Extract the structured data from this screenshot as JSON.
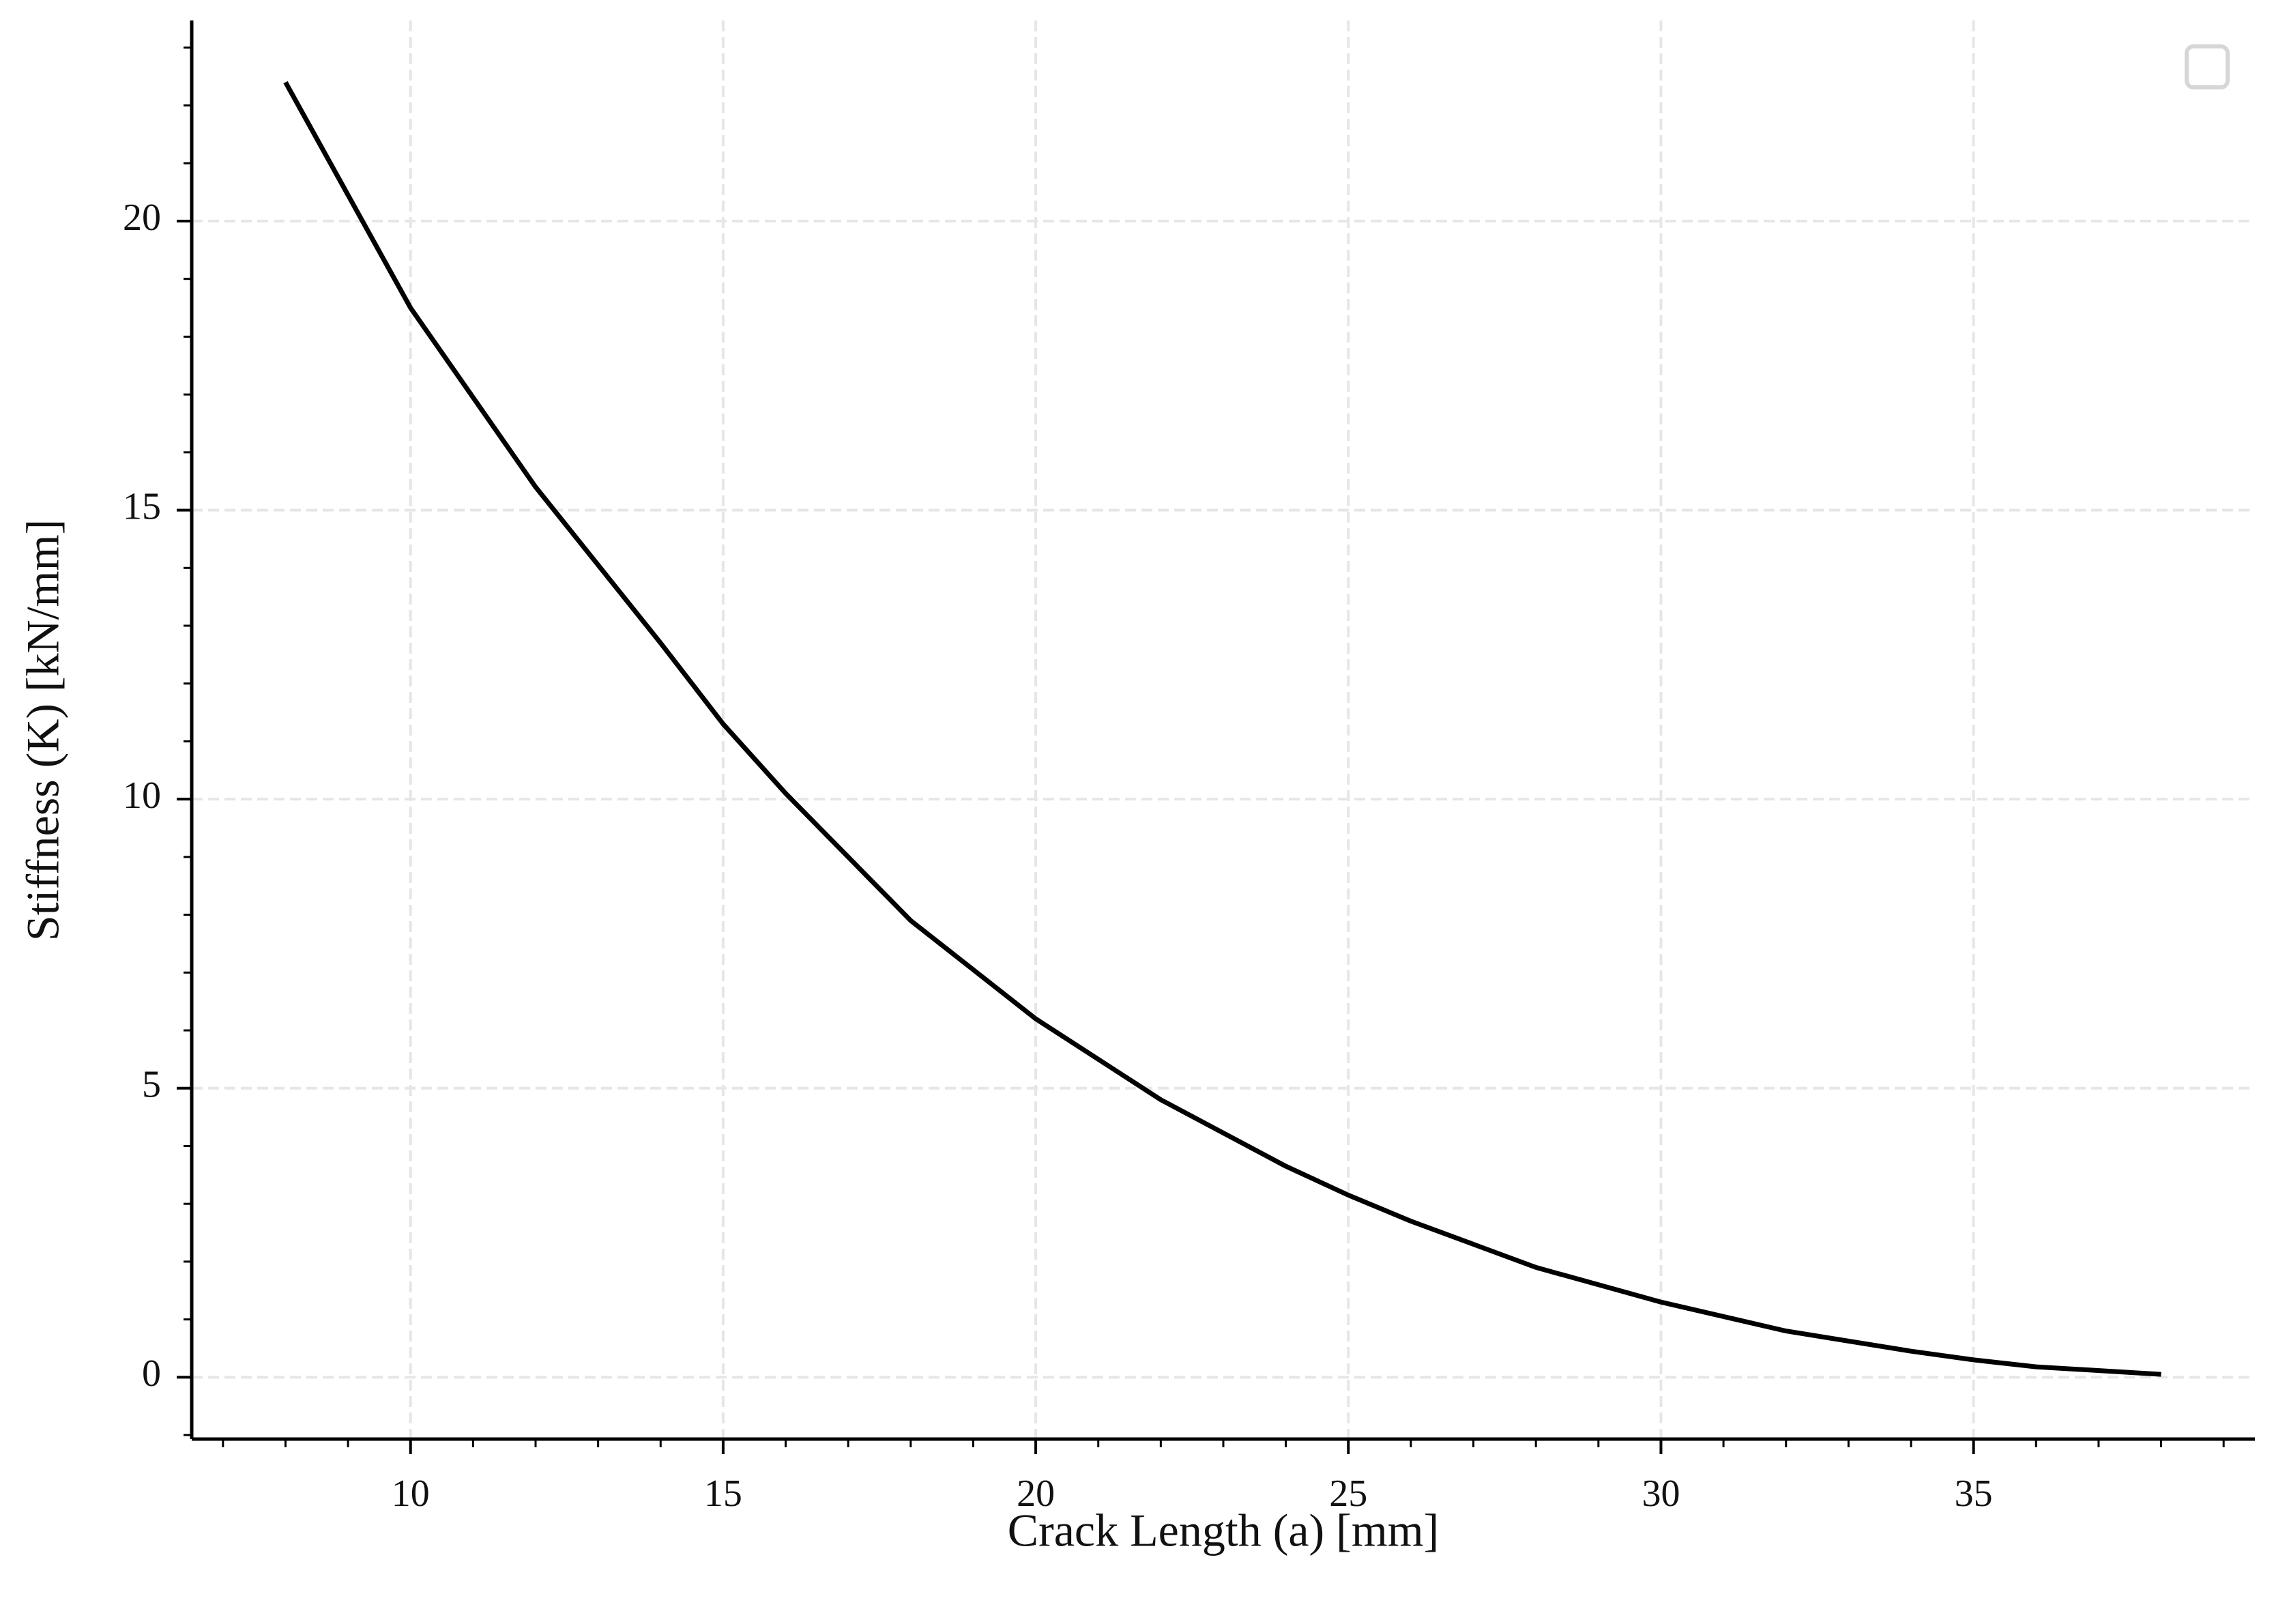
{
  "chart_data": {
    "type": "line",
    "xlabel": "Crack Length (a) [mm]",
    "ylabel": "Stiffness (K) [kN/mm]",
    "x": [
      8,
      10,
      12,
      14,
      15,
      16,
      18,
      20,
      22,
      24,
      25,
      26,
      28,
      30,
      32,
      34,
      35,
      36,
      38
    ],
    "values": [
      22.4,
      18.5,
      15.4,
      12.7,
      11.3,
      10.1,
      7.9,
      6.2,
      4.8,
      3.65,
      3.15,
      2.7,
      1.9,
      1.3,
      0.8,
      0.45,
      0.3,
      0.18,
      0.05
    ],
    "color": "#000000",
    "xlim": [
      6.5,
      39.5
    ],
    "ylim": [
      -1.07,
      23.47
    ],
    "xticks": [
      10,
      15,
      20,
      25,
      30,
      35
    ],
    "yticks": [
      0,
      5,
      10,
      15,
      20
    ],
    "minor_xticks": [
      7,
      8,
      9,
      11,
      12,
      13,
      14,
      16,
      17,
      18,
      19,
      21,
      22,
      23,
      24,
      26,
      27,
      28,
      29,
      31,
      32,
      33,
      34,
      36,
      37,
      38,
      39
    ],
    "minor_yticks": [
      -1,
      1,
      2,
      3,
      4,
      6,
      7,
      8,
      9,
      11,
      12,
      13,
      14,
      16,
      17,
      18,
      19,
      21,
      22,
      23
    ],
    "grid": true
  }
}
